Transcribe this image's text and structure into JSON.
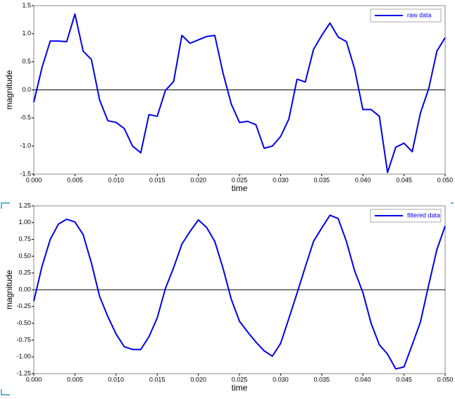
{
  "chart_data": [
    {
      "type": "line",
      "xlabel": "time",
      "ylabel": "magnitude",
      "legend": "upper right",
      "hline": 0,
      "x": [
        0,
        0.001,
        0.002,
        0.003,
        0.004,
        0.005,
        0.006,
        0.007,
        0.008,
        0.009,
        0.01,
        0.011,
        0.012,
        0.013,
        0.014,
        0.015,
        0.016,
        0.017,
        0.018,
        0.019,
        0.02,
        0.021,
        0.022,
        0.023,
        0.024,
        0.025,
        0.026,
        0.027,
        0.028,
        0.029,
        0.03,
        0.031,
        0.032,
        0.033,
        0.034,
        0.035,
        0.036,
        0.037,
        0.038,
        0.039,
        0.04,
        0.041,
        0.042,
        0.043,
        0.044,
        0.045,
        0.046,
        0.047,
        0.048,
        0.049,
        0.05
      ],
      "series": [
        {
          "name": "raw data",
          "color": "#0000ee",
          "values": [
            -0.22,
            0.4,
            0.87,
            0.87,
            0.86,
            1.35,
            0.69,
            0.54,
            -0.18,
            -0.55,
            -0.58,
            -0.69,
            -1.0,
            -1.12,
            -0.44,
            -0.47,
            -0.01,
            0.15,
            0.97,
            0.83,
            0.89,
            0.95,
            0.97,
            0.3,
            -0.25,
            -0.58,
            -0.56,
            -0.62,
            -1.04,
            -1.0,
            -0.83,
            -0.52,
            0.19,
            0.14,
            0.72,
            0.97,
            1.19,
            0.94,
            0.86,
            0.37,
            -0.35,
            -0.35,
            -0.47,
            -1.47,
            -1.02,
            -0.95,
            -1.1,
            -0.41,
            0.02,
            0.69,
            0.93
          ]
        }
      ],
      "xlim": [
        0,
        0.05
      ],
      "ylim": [
        -1.5,
        1.5
      ],
      "xticks": [
        {
          "value": 0,
          "label": "0.000"
        },
        {
          "value": 0.005,
          "label": "0.005"
        },
        {
          "value": 0.01,
          "label": "0.010"
        },
        {
          "value": 0.015,
          "label": "0.015"
        },
        {
          "value": 0.02,
          "label": "0.020"
        },
        {
          "value": 0.025,
          "label": "0.025"
        },
        {
          "value": 0.03,
          "label": "0.030"
        },
        {
          "value": 0.035,
          "label": "0.035"
        },
        {
          "value": 0.04,
          "label": "0.040"
        },
        {
          "value": 0.045,
          "label": "0.045"
        },
        {
          "value": 0.05,
          "label": "0.050"
        }
      ],
      "yticks": [
        {
          "value": -1.5,
          "label": "-1.5"
        },
        {
          "value": -1,
          "label": "-1.0"
        },
        -0.5,
        {
          "value": 0,
          "label": "0.0"
        },
        0.5,
        {
          "value": 1,
          "label": "1.0"
        },
        1.5
      ]
    },
    {
      "type": "line",
      "xlabel": "time",
      "ylabel": "magnitude",
      "legend": "upper right",
      "hline": 0,
      "x": [
        0,
        0.001,
        0.002,
        0.003,
        0.004,
        0.005,
        0.006,
        0.007,
        0.008,
        0.009,
        0.01,
        0.011,
        0.012,
        0.013,
        0.014,
        0.015,
        0.016,
        0.017,
        0.018,
        0.019,
        0.02,
        0.021,
        0.022,
        0.023,
        0.024,
        0.025,
        0.026,
        0.027,
        0.028,
        0.029,
        0.03,
        0.031,
        0.032,
        0.033,
        0.034,
        0.035,
        0.036,
        0.037,
        0.038,
        0.039,
        0.04,
        0.041,
        0.042,
        0.043,
        0.044,
        0.045,
        0.046,
        0.047,
        0.048,
        0.049,
        0.05
      ],
      "series": [
        {
          "name": "filtered data",
          "color": "#0000ee",
          "values": [
            -0.17,
            0.35,
            0.75,
            0.98,
            1.05,
            1.01,
            0.82,
            0.4,
            -0.1,
            -0.4,
            -0.66,
            -0.85,
            -0.89,
            -0.89,
            -0.7,
            -0.42,
            0.02,
            0.33,
            0.68,
            0.87,
            1.04,
            0.93,
            0.72,
            0.32,
            -0.14,
            -0.47,
            -0.63,
            -0.78,
            -0.91,
            -0.99,
            -0.8,
            -0.43,
            -0.05,
            0.34,
            0.72,
            0.92,
            1.11,
            1.06,
            0.72,
            0.28,
            -0.04,
            -0.5,
            -0.82,
            -0.96,
            -1.18,
            -1.15,
            -0.82,
            -0.48,
            0.07,
            0.6,
            0.95
          ]
        }
      ],
      "xlim": [
        0,
        0.05
      ],
      "ylim": [
        -1.25,
        1.25
      ],
      "xticks": [
        {
          "value": 0,
          "label": "0.000"
        },
        {
          "value": 0.005,
          "label": "0.005"
        },
        {
          "value": 0.01,
          "label": "0.010"
        },
        {
          "value": 0.015,
          "label": "0.015"
        },
        {
          "value": 0.02,
          "label": "0.020"
        },
        {
          "value": 0.025,
          "label": "0.025"
        },
        {
          "value": 0.03,
          "label": "0.030"
        },
        {
          "value": 0.035,
          "label": "0.035"
        },
        {
          "value": 0.04,
          "label": "0.040"
        },
        {
          "value": 0.045,
          "label": "0.045"
        },
        {
          "value": 0.05,
          "label": "0.050"
        }
      ],
      "yticks": [
        -1.25,
        {
          "value": -1,
          "label": "-1.00"
        },
        -0.75,
        {
          "value": -0.5,
          "label": "-0.50"
        },
        -0.25,
        {
          "value": 0,
          "label": "0.00"
        },
        0.25,
        {
          "value": 0.5,
          "label": "0.50"
        },
        0.75,
        {
          "value": 1,
          "label": "1.00"
        },
        1.25
      ]
    }
  ]
}
